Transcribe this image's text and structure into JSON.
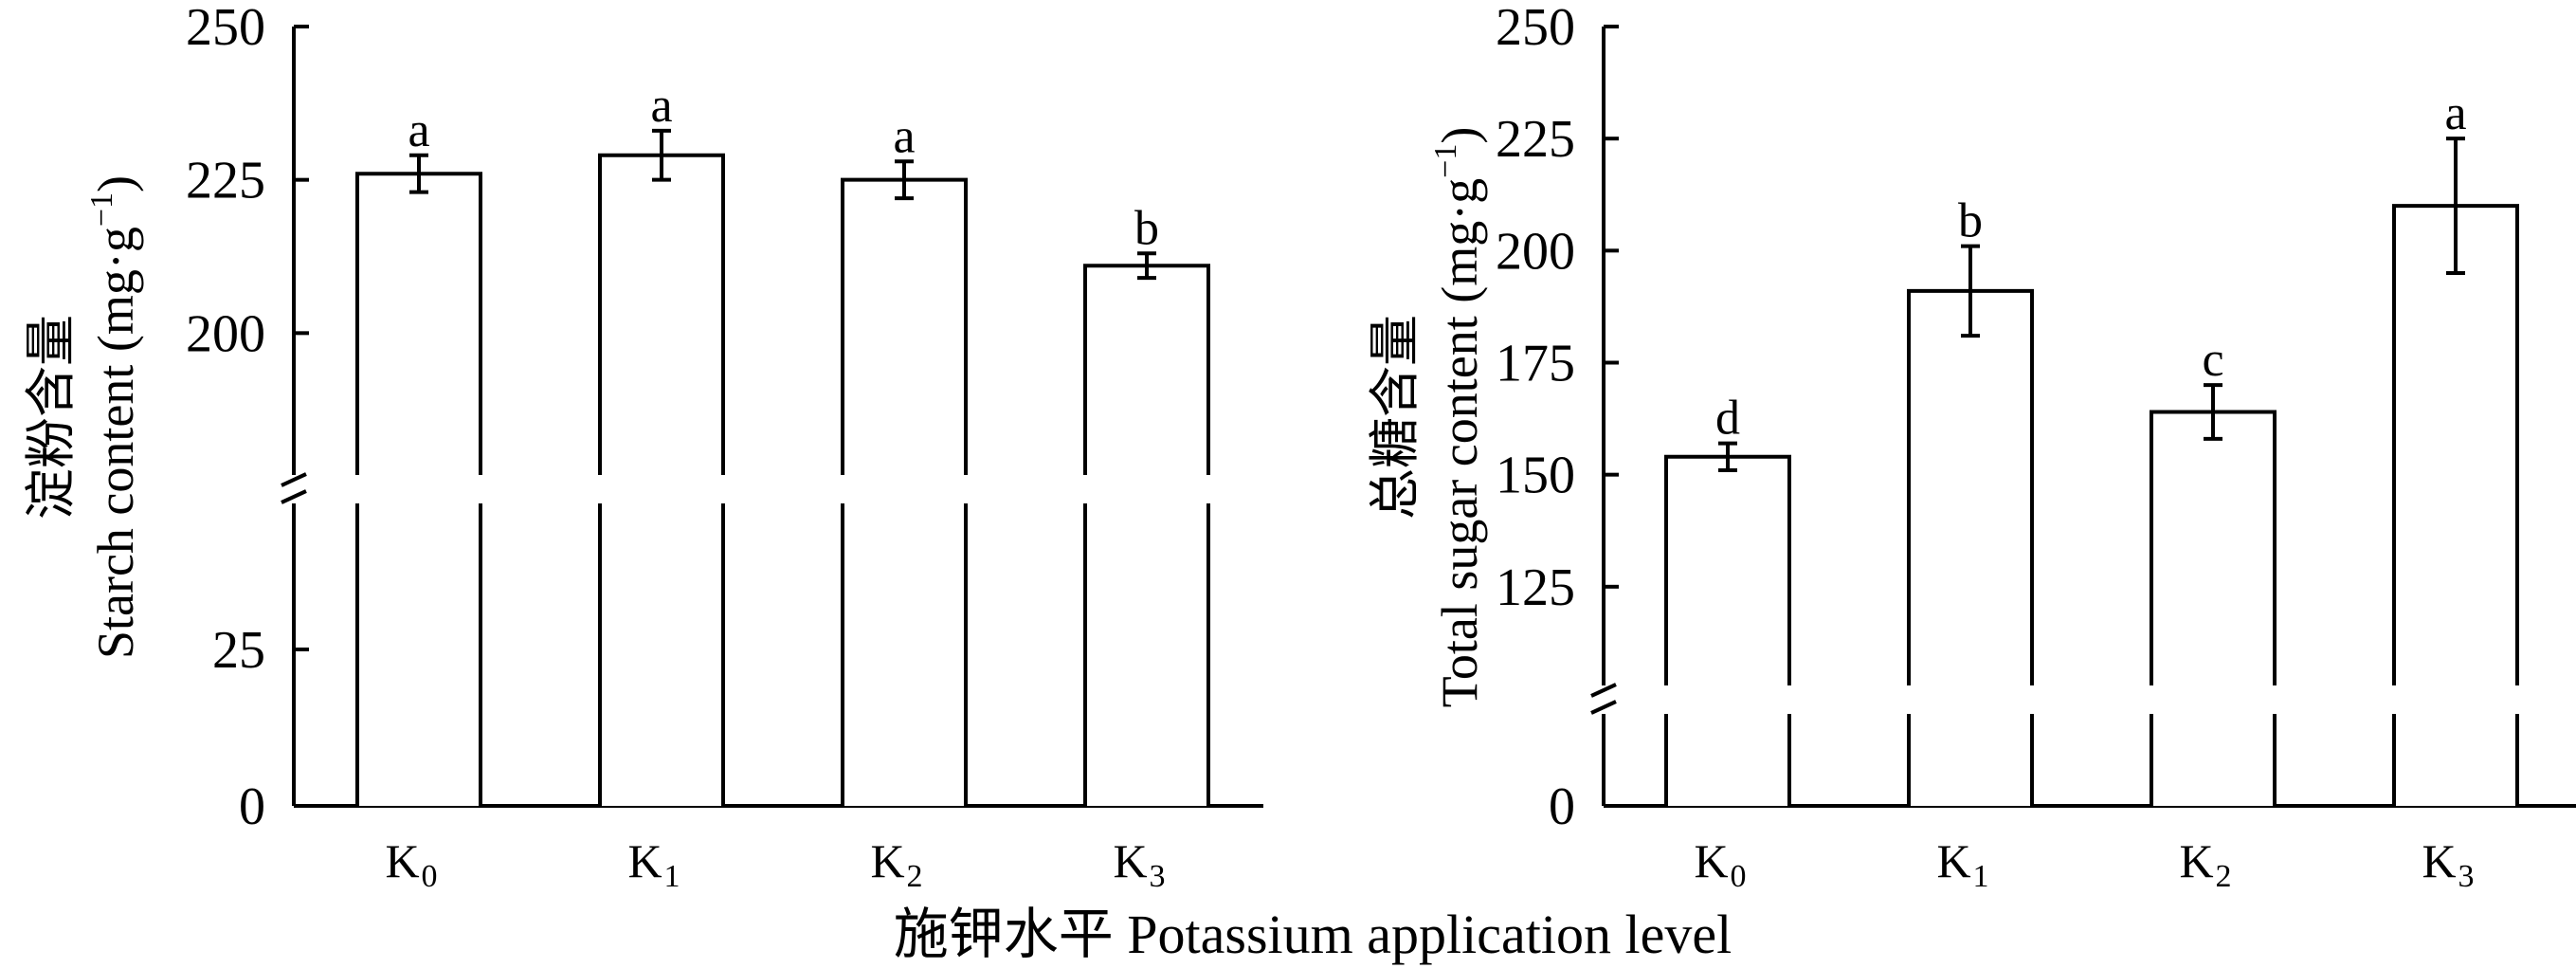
{
  "x_axis_title": "施钾水平 Potassium application level",
  "chart_data": [
    {
      "type": "bar",
      "ylabel": "淀粉含量 Starch content (mg·g⁻¹)",
      "ylabel_cn": "淀粉含量",
      "ylabel_en": "Starch content (mg·g",
      "ylabel_sup": "−1",
      "ylabel_close": ")",
      "categories": [
        {
          "main": "K",
          "sub": "0"
        },
        {
          "main": "K",
          "sub": "1"
        },
        {
          "main": "K",
          "sub": "2"
        },
        {
          "main": "K",
          "sub": "3"
        }
      ],
      "values": [
        226,
        229,
        225,
        211
      ],
      "error": [
        3,
        4,
        3,
        2
      ],
      "significance": [
        "a",
        "a",
        "a",
        "b"
      ],
      "axis_break": true,
      "lower_segment": {
        "ylim": [
          0,
          50
        ],
        "ticks": [
          0,
          25
        ]
      },
      "upper_segment": {
        "ylim": [
          175,
          250
        ],
        "ticks": [
          200,
          225,
          250
        ]
      },
      "tick_labels": [
        "0",
        "25",
        "200",
        "225",
        "250"
      ]
    },
    {
      "type": "bar",
      "ylabel": "总糖含量 Total sugar content (mg·g⁻¹)",
      "ylabel_cn": "总糖含量",
      "ylabel_en": "Total sugar content (mg·g",
      "ylabel_sup": "−1",
      "ylabel_close": ")",
      "categories": [
        {
          "main": "K",
          "sub": "0"
        },
        {
          "main": "K",
          "sub": "1"
        },
        {
          "main": "K",
          "sub": "2"
        },
        {
          "main": "K",
          "sub": "3"
        }
      ],
      "values": [
        154,
        191,
        164,
        210
      ],
      "error": [
        3,
        10,
        6,
        15
      ],
      "significance": [
        "d",
        "b",
        "c",
        "a"
      ],
      "axis_break": true,
      "lower_segment": {
        "ylim": [
          0,
          10
        ],
        "ticks": [
          0
        ]
      },
      "upper_segment": {
        "ylim": [
          100,
          250
        ],
        "ticks": [
          125,
          150,
          175,
          200,
          225,
          250
        ]
      },
      "tick_labels": [
        "0",
        "125",
        "150",
        "175",
        "200",
        "225",
        "250"
      ]
    }
  ]
}
